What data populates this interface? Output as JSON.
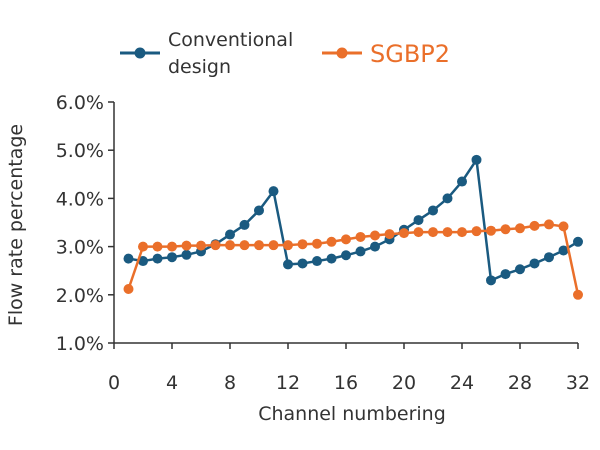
{
  "chart_data": {
    "type": "line",
    "title": "",
    "xlabel": "Channel numbering",
    "ylabel": "Flow rate percentage",
    "xlim": [
      0,
      32
    ],
    "ylim": [
      1.0,
      6.0
    ],
    "xticks": [
      0,
      4,
      8,
      12,
      16,
      20,
      24,
      28,
      32
    ],
    "xtick_labels": [
      "0",
      "4",
      "8",
      "12",
      "16",
      "20",
      "24",
      "28",
      "32"
    ],
    "yticks": [
      1.0,
      2.0,
      3.0,
      4.0,
      5.0,
      6.0
    ],
    "ytick_labels": [
      "1.0%",
      "2.0%",
      "3.0%",
      "4.0%",
      "5.0%",
      "6.0%"
    ],
    "grid": false,
    "legend_position": "top",
    "x": [
      1,
      2,
      3,
      4,
      5,
      6,
      7,
      8,
      9,
      10,
      11,
      12,
      13,
      14,
      15,
      16,
      17,
      18,
      19,
      20,
      21,
      22,
      23,
      24,
      25,
      26,
      27,
      28,
      29,
      30,
      31,
      32
    ],
    "series": [
      {
        "name_lines": [
          "Conventional",
          "design"
        ],
        "color": "#1a5a80",
        "values": [
          2.75,
          2.7,
          2.75,
          2.78,
          2.83,
          2.9,
          3.05,
          3.25,
          3.45,
          3.75,
          4.15,
          2.63,
          2.65,
          2.7,
          2.75,
          2.82,
          2.9,
          3.0,
          3.15,
          3.35,
          3.55,
          3.75,
          4.0,
          4.35,
          4.8,
          2.3,
          2.43,
          2.53,
          2.65,
          2.78,
          2.92,
          3.1
        ]
      },
      {
        "name_lines": [
          "SGBP2"
        ],
        "color": "#ea6f2a",
        "values": [
          2.12,
          3.0,
          3.0,
          3.0,
          3.02,
          3.02,
          3.03,
          3.03,
          3.03,
          3.03,
          3.03,
          3.03,
          3.05,
          3.06,
          3.1,
          3.15,
          3.2,
          3.23,
          3.26,
          3.28,
          3.3,
          3.3,
          3.3,
          3.3,
          3.32,
          3.33,
          3.36,
          3.38,
          3.43,
          3.46,
          3.42,
          2.0
        ]
      }
    ]
  }
}
